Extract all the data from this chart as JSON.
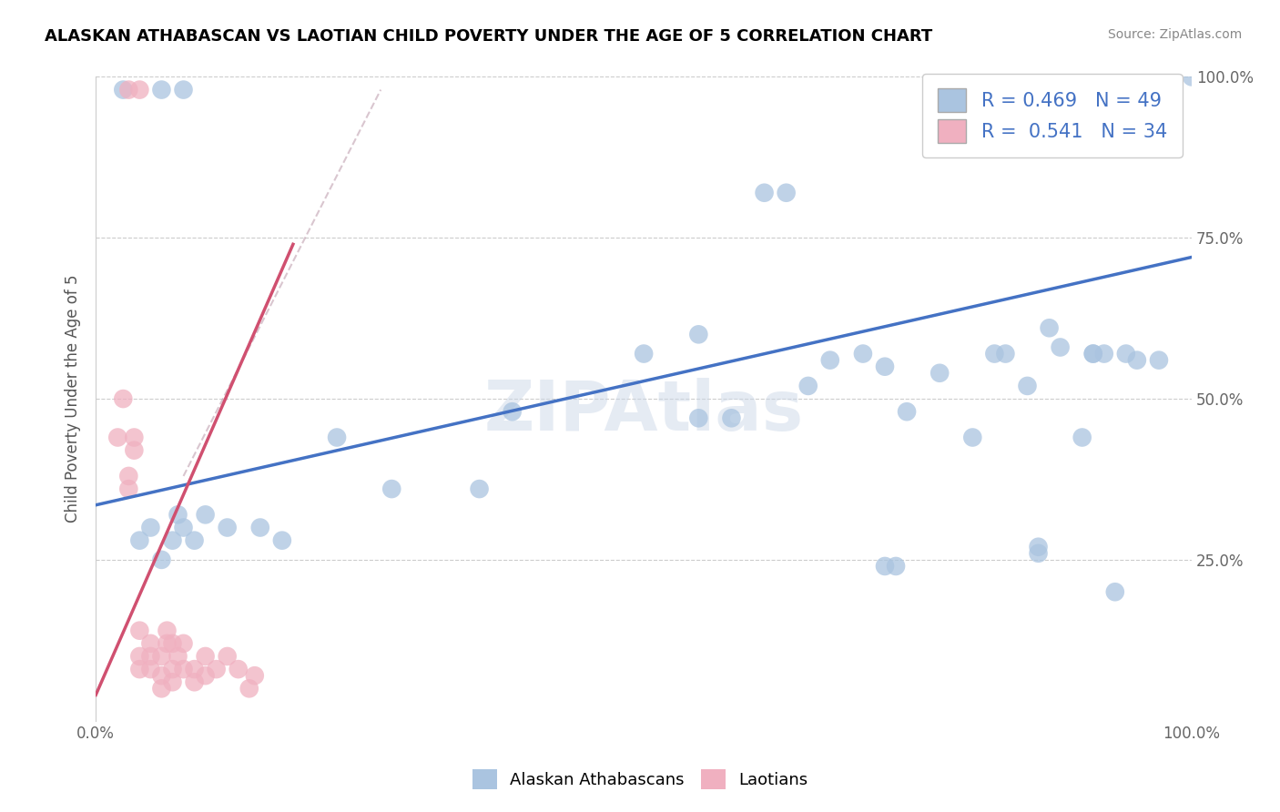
{
  "title": "ALASKAN ATHABASCAN VS LAOTIAN CHILD POVERTY UNDER THE AGE OF 5 CORRELATION CHART",
  "source": "Source: ZipAtlas.com",
  "ylabel": "Child Poverty Under the Age of 5",
  "xlim": [
    0,
    1.0
  ],
  "ylim": [
    0,
    1.0
  ],
  "blue_r": 0.469,
  "blue_n": 49,
  "pink_r": 0.541,
  "pink_n": 34,
  "blue_color": "#aac4e0",
  "pink_color": "#f0b0c0",
  "trend_blue": "#4472c4",
  "trend_pink": "#d05070",
  "trend_blue_x0": 0.0,
  "trend_blue_y0": 0.335,
  "trend_blue_x1": 1.0,
  "trend_blue_y1": 0.72,
  "trend_pink_x0": 0.0,
  "trend_pink_y0": 0.04,
  "trend_pink_x1": 0.18,
  "trend_pink_y1": 0.74,
  "blue_scatter_x": [
    0.025,
    0.06,
    0.08,
    0.04,
    0.05,
    0.06,
    0.07,
    0.075,
    0.08,
    0.09,
    0.1,
    0.12,
    0.15,
    0.17,
    0.22,
    0.27,
    0.35,
    0.38,
    0.5,
    0.55,
    0.61,
    0.63,
    0.65,
    0.67,
    0.7,
    0.72,
    0.74,
    0.77,
    0.8,
    0.82,
    0.83,
    0.85,
    0.87,
    0.88,
    0.9,
    0.92,
    0.94,
    0.95,
    0.97,
    0.72,
    0.73,
    0.86,
    0.86,
    0.91,
    0.91,
    0.93,
    1.0,
    0.55,
    0.58
  ],
  "blue_scatter_y": [
    0.98,
    0.98,
    0.98,
    0.28,
    0.3,
    0.25,
    0.28,
    0.32,
    0.3,
    0.28,
    0.32,
    0.3,
    0.3,
    0.28,
    0.44,
    0.36,
    0.36,
    0.48,
    0.57,
    0.6,
    0.82,
    0.82,
    0.52,
    0.56,
    0.57,
    0.55,
    0.48,
    0.54,
    0.44,
    0.57,
    0.57,
    0.52,
    0.61,
    0.58,
    0.44,
    0.57,
    0.57,
    0.56,
    0.56,
    0.24,
    0.24,
    0.26,
    0.27,
    0.57,
    0.57,
    0.2,
    1.0,
    0.47,
    0.47
  ],
  "pink_scatter_x": [
    0.02,
    0.025,
    0.03,
    0.03,
    0.035,
    0.035,
    0.04,
    0.04,
    0.04,
    0.05,
    0.05,
    0.05,
    0.06,
    0.06,
    0.06,
    0.065,
    0.065,
    0.07,
    0.07,
    0.07,
    0.075,
    0.08,
    0.08,
    0.09,
    0.09,
    0.1,
    0.1,
    0.11,
    0.12,
    0.13,
    0.14,
    0.145,
    0.03,
    0.04
  ],
  "pink_scatter_y": [
    0.44,
    0.5,
    0.36,
    0.38,
    0.42,
    0.44,
    0.08,
    0.1,
    0.14,
    0.08,
    0.1,
    0.12,
    0.05,
    0.07,
    0.1,
    0.12,
    0.14,
    0.06,
    0.08,
    0.12,
    0.1,
    0.08,
    0.12,
    0.06,
    0.08,
    0.07,
    0.1,
    0.08,
    0.1,
    0.08,
    0.05,
    0.07,
    0.98,
    0.98
  ]
}
